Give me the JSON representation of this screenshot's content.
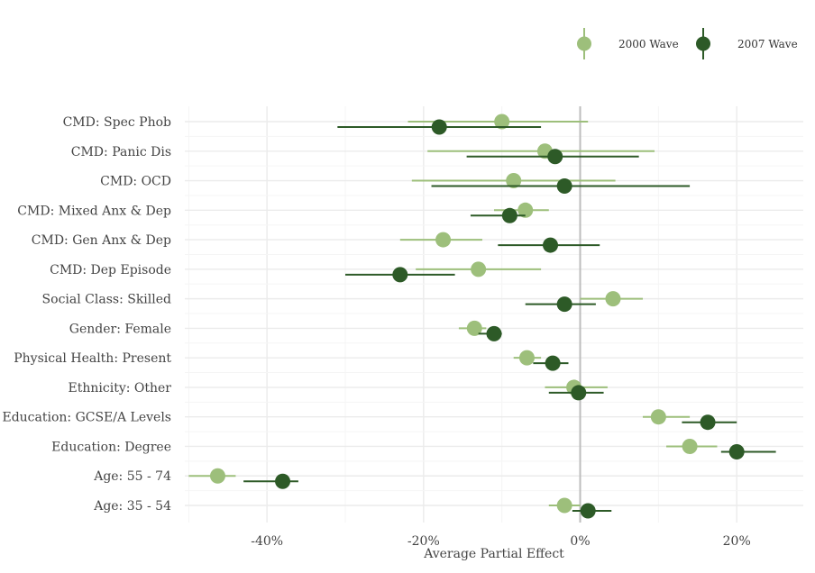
{
  "chart_data": {
    "type": "scatter",
    "subtype": "dot-and-whisker",
    "xlabel": "Average Partial Effect",
    "xlim": [
      -50.5,
      28.5
    ],
    "xticks": [
      -40,
      -20,
      0,
      20
    ],
    "xtick_labels": [
      "-40%",
      "-20%",
      "0%",
      "20%"
    ],
    "reference_line_x": 0,
    "grid": true,
    "legend_position": "top-right",
    "categories": [
      "CMD: Spec Phob",
      "CMD: Panic Dis",
      "CMD: OCD",
      "CMD: Mixed Anx & Dep",
      "CMD: Gen Anx & Dep",
      "CMD: Dep Episode",
      "Social Class: Skilled",
      "Gender: Female",
      "Physical Health: Present",
      "Ethnicity: Other",
      "Education: GCSE/A Levels",
      "Education: Degree",
      "Age: 55 - 74",
      "Age: 35 - 54"
    ],
    "series": [
      {
        "name": "2000 Wave",
        "color": "#9dbf7b",
        "values": [
          -10,
          -4.5,
          -8.5,
          -7,
          -17.5,
          -13,
          4.2,
          -13.5,
          -6.8,
          -0.8,
          10,
          14,
          -46.3,
          -2
        ],
        "lower": [
          -22,
          -19.5,
          -21.5,
          -11,
          -23,
          -21,
          0,
          -15.5,
          -8.5,
          -4.5,
          8,
          11,
          -50,
          -4
        ],
        "upper": [
          1,
          9.5,
          4.5,
          -4,
          -12.5,
          -5,
          8,
          -12,
          -5,
          3.5,
          14,
          17.5,
          -44,
          0
        ]
      },
      {
        "name": "2007 Wave",
        "color": "#2d5a27",
        "values": [
          -18,
          -3.2,
          -2,
          -9,
          -3.8,
          -23,
          -2,
          -11,
          -3.5,
          -0.2,
          16.3,
          20,
          -38,
          1
        ],
        "lower": [
          -31,
          -14.5,
          -19,
          -14,
          -10.5,
          -30,
          -7,
          -13,
          -6,
          -4,
          13,
          18,
          -43,
          -1
        ],
        "upper": [
          -5,
          7.5,
          14,
          -7,
          2.5,
          -16,
          2,
          -10,
          -1.5,
          3,
          20,
          25,
          -36,
          4
        ]
      }
    ]
  }
}
